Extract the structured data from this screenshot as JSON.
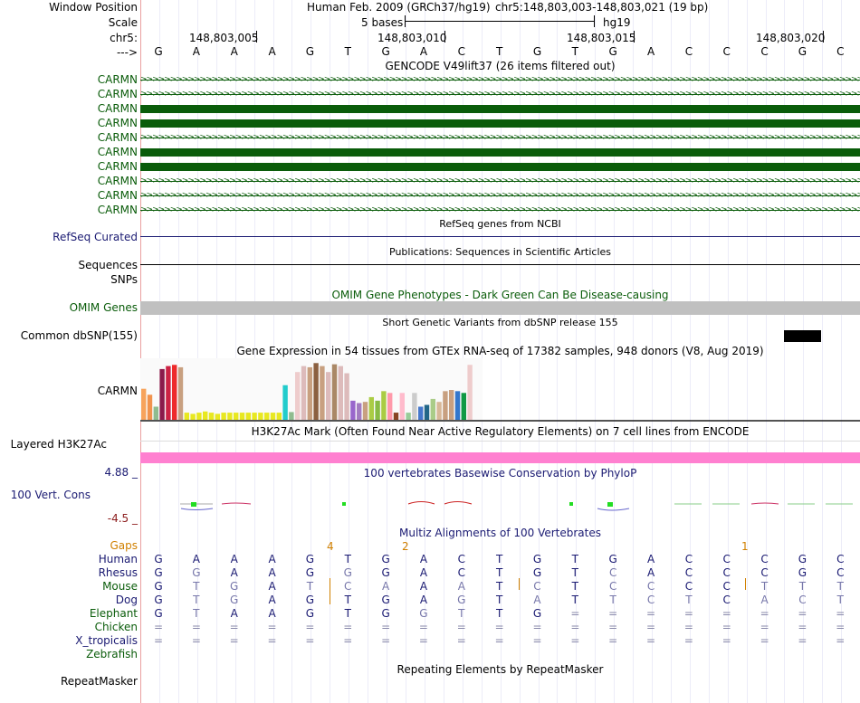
{
  "header": {
    "window_position_label": "Window Position",
    "assembly": "Human Feb. 2009 (GRCh37/hg19)",
    "position": "chr5:148,803,003-148,803,021 (19 bp)",
    "scale_label": "Scale",
    "scale_text": "5 bases",
    "scale_db": "hg19",
    "chrom_label": "chr5:",
    "coords": [
      "148,803,005",
      "148,803,010",
      "148,803,015",
      "148,803,020"
    ],
    "strand_label": "--->",
    "bases": [
      "G",
      "A",
      "A",
      "A",
      "G",
      "T",
      "G",
      "A",
      "C",
      "T",
      "G",
      "T",
      "G",
      "A",
      "C",
      "C",
      "C",
      "G",
      "C"
    ]
  },
  "gencode": {
    "title": "GENCODE V49lift37 (26 items filtered out)",
    "genes": [
      "CARMN",
      "CARMN",
      "CARMN",
      "CARMN",
      "CARMN",
      "CARMN",
      "CARMN",
      "CARMN",
      "CARMN",
      "CARMN"
    ],
    "gene_color": "#0a5c0a"
  },
  "refseq": {
    "title": "RefSeq genes from NCBI",
    "label": "RefSeq Curated"
  },
  "publications": {
    "title": "Publications: Sequences in Scientific Articles",
    "label": "Sequences"
  },
  "snps": {
    "label": "SNPs"
  },
  "omim": {
    "title": "OMIM Gene Phenotypes - Dark Green Can Be Disease-causing",
    "label": "OMIM Genes"
  },
  "dbsnp": {
    "title": "Short Genetic Variants from dbSNP release 155",
    "label": "Common dbSNP(155)"
  },
  "gtex": {
    "title": "Gene Expression in 54 tissues from GTEx RNA-seq of 17382 samples, 948 donors (V8, Aug 2019)",
    "label": "CARMN",
    "values": [
      0.52,
      0.42,
      0.22,
      0.85,
      0.9,
      0.92,
      0.88,
      0.12,
      0.1,
      0.12,
      0.14,
      0.12,
      0.1,
      0.12,
      0.12,
      0.12,
      0.12,
      0.12,
      0.12,
      0.12,
      0.12,
      0.12,
      0.12,
      0.58,
      0.13,
      0.8,
      0.9,
      0.88,
      0.95,
      0.9,
      0.8,
      0.93,
      0.9,
      0.78,
      0.32,
      0.28,
      0.3,
      0.38,
      0.32,
      0.48,
      0.45,
      0.12,
      0.45,
      0.12,
      0.45,
      0.22,
      0.25,
      0.35,
      0.3,
      0.48,
      0.5,
      0.48,
      0.45,
      0.92
    ],
    "colors": [
      "#f7a35c",
      "#f1934e",
      "#8fbc8f",
      "#8b1a4b",
      "#cc2244",
      "#ee2a2a",
      "#c8a080",
      "#e8e820",
      "#e8e820",
      "#e8e820",
      "#e8e820",
      "#e8e820",
      "#e8e820",
      "#e8e820",
      "#e8e820",
      "#e8e820",
      "#e8e820",
      "#e8e820",
      "#e8e820",
      "#e8e820",
      "#e8e820",
      "#e8e820",
      "#e8e820",
      "#22cccc",
      "#8fbc8f",
      "#eecccc",
      "#ddbbbb",
      "#c8a080",
      "#8b6040",
      "#c8a080",
      "#ddbbbb",
      "#aa8866",
      "#ddbbbb",
      "#ddbbbb",
      "#9966cc",
      "#a37bc1",
      "#c8a080",
      "#aacc44",
      "#88bb44",
      "#aacc44",
      "#ff99aa",
      "#884422",
      "#ffbbcc",
      "#99cc99",
      "#cccccc",
      "#4477cc",
      "#226688",
      "#aacc88",
      "#d8b898",
      "#c8a080",
      "#c8a080",
      "#3377cc",
      "#119944",
      "#eecccc"
    ]
  },
  "h3k27ac": {
    "title": "H3K27Ac Mark (Often Found Near Active Regulatory Elements) on 7 cell lines from ENCODE",
    "label": "Layered H3K27Ac",
    "color": "#ff80d0"
  },
  "conservation": {
    "title": "100 vertebrates Basewise Conservation by PhyloP",
    "label": "100 Vert. Cons",
    "max": "4.88 _",
    "min": "-4.5 _"
  },
  "multiz": {
    "title": "Multiz Alignments of 100 Vertebrates",
    "gaps_label": "Gaps",
    "gap_numbers": [
      "4",
      "2",
      "1"
    ],
    "species": [
      {
        "name": "Human",
        "seq": [
          "G",
          "A",
          "A",
          "A",
          "G",
          "T",
          "G",
          "A",
          "C",
          "T",
          "G",
          "T",
          "G",
          "A",
          "C",
          "C",
          "C",
          "G",
          "C"
        ],
        "kind": [
          "m",
          "m",
          "m",
          "m",
          "m",
          "m",
          "m",
          "m",
          "m",
          "m",
          "m",
          "m",
          "m",
          "m",
          "m",
          "m",
          "m",
          "m",
          "m"
        ]
      },
      {
        "name": "Rhesus",
        "seq": [
          "G",
          "G",
          "A",
          "A",
          "G",
          "G",
          "G",
          "A",
          "C",
          "T",
          "G",
          "T",
          "C",
          "A",
          "C",
          "C",
          "C",
          "G",
          "C"
        ],
        "kind": [
          "m",
          "x",
          "m",
          "m",
          "m",
          "x",
          "m",
          "m",
          "m",
          "m",
          "m",
          "m",
          "x",
          "m",
          "m",
          "m",
          "m",
          "m",
          "m"
        ]
      },
      {
        "name": "Mouse",
        "seq": [
          "G",
          "T",
          "G",
          "A",
          "T",
          "C",
          "A",
          "A",
          "A",
          "T",
          "C",
          "T",
          "C",
          "C",
          "C",
          "C",
          "T",
          "T",
          "T"
        ],
        "kind": [
          "m",
          "x",
          "x",
          "m",
          "x",
          "x",
          "x",
          "m",
          "x",
          "m",
          "x",
          "m",
          "x",
          "x",
          "m",
          "m",
          "x",
          "x",
          "x"
        ]
      },
      {
        "name": "Dog",
        "seq": [
          "G",
          "T",
          "G",
          "A",
          "G",
          "T",
          "G",
          "A",
          "G",
          "T",
          "A",
          "T",
          "T",
          "C",
          "T",
          "C",
          "A",
          "C",
          "T"
        ],
        "kind": [
          "m",
          "x",
          "x",
          "m",
          "m",
          "m",
          "m",
          "m",
          "x",
          "m",
          "x",
          "m",
          "x",
          "x",
          "x",
          "m",
          "x",
          "x",
          "x"
        ]
      },
      {
        "name": "Elephant",
        "seq": [
          "G",
          "T",
          "A",
          "A",
          "G",
          "T",
          "G",
          "G",
          "T",
          "T",
          "G",
          "=",
          "=",
          "=",
          "=",
          "=",
          "=",
          "=",
          "="
        ],
        "kind": [
          "m",
          "x",
          "m",
          "m",
          "m",
          "m",
          "m",
          "x",
          "x",
          "m",
          "m",
          "e",
          "e",
          "e",
          "e",
          "e",
          "e",
          "e",
          "e"
        ]
      },
      {
        "name": "Chicken",
        "seq": [
          "=",
          "=",
          "=",
          "=",
          "=",
          "=",
          "=",
          "=",
          "=",
          "=",
          "=",
          "=",
          "=",
          "=",
          "=",
          "=",
          "=",
          "=",
          "="
        ],
        "kind": [
          "e",
          "e",
          "e",
          "e",
          "e",
          "e",
          "e",
          "e",
          "e",
          "e",
          "e",
          "e",
          "e",
          "e",
          "e",
          "e",
          "e",
          "e",
          "e"
        ]
      },
      {
        "name": "X_tropicalis",
        "seq": [
          "=",
          "=",
          "=",
          "=",
          "=",
          "=",
          "=",
          "=",
          "=",
          "=",
          "=",
          "=",
          "=",
          "=",
          "=",
          "=",
          "=",
          "=",
          "="
        ],
        "kind": [
          "e",
          "e",
          "e",
          "e",
          "e",
          "e",
          "e",
          "e",
          "e",
          "e",
          "e",
          "e",
          "e",
          "e",
          "e",
          "e",
          "e",
          "e",
          "e"
        ]
      },
      {
        "name": "Zebrafish",
        "seq": [],
        "kind": []
      }
    ]
  },
  "repeatmasker": {
    "title": "Repeating Elements by RepeatMasker",
    "label": "RepeatMasker"
  },
  "colors": {
    "navy": "#1a1a72",
    "green": "#0a5c0a",
    "gap": "#d08000",
    "mismatch": "#7777aa",
    "red": "#8b1a1a",
    "omim_gray": "#c0c0c0"
  }
}
